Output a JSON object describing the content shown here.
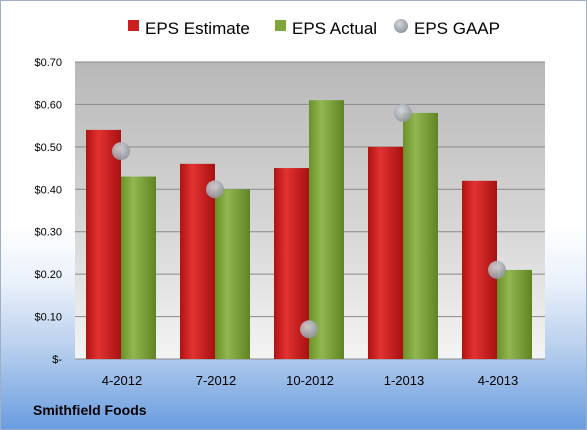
{
  "company": "Smithfield Foods",
  "colors": {
    "estimate": "#cc1f1f",
    "actual": "#7ea63a",
    "gaap": "#a9adb4"
  },
  "chart_data": {
    "type": "bar",
    "categories": [
      "4-2012",
      "7-2012",
      "10-2012",
      "1-2013",
      "4-2013"
    ],
    "series": [
      {
        "name": "EPS Estimate",
        "kind": "bar",
        "values": [
          0.54,
          0.46,
          0.45,
          0.5,
          0.42
        ]
      },
      {
        "name": "EPS Actual",
        "kind": "bar",
        "values": [
          0.43,
          0.4,
          0.61,
          0.58,
          0.21
        ]
      },
      {
        "name": "EPS GAAP",
        "kind": "marker",
        "values": [
          0.49,
          0.4,
          0.07,
          0.58,
          0.21
        ]
      }
    ],
    "yticks": [
      "$-",
      "$0.10",
      "$0.20",
      "$0.30",
      "$0.40",
      "$0.50",
      "$0.60",
      "$0.70"
    ],
    "ylim": [
      0,
      0.7
    ],
    "grid": true,
    "legend": "top"
  }
}
